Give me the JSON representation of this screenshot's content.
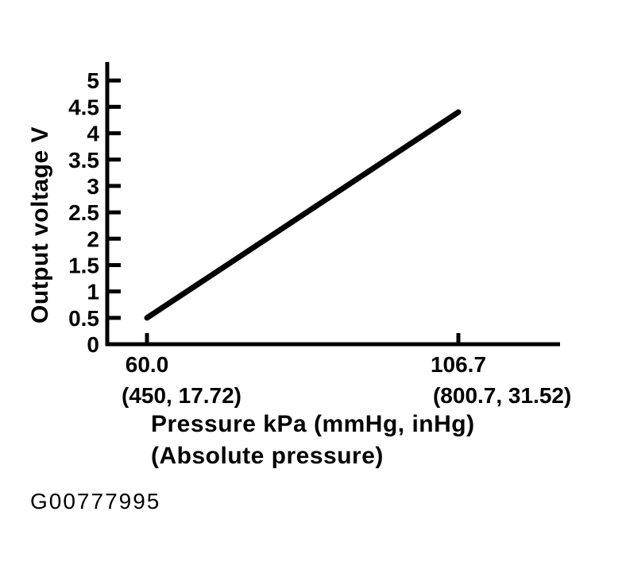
{
  "figure_id": "G00777995",
  "colors": {
    "ink": "#000000",
    "background": "#ffffff"
  },
  "chart_data": {
    "type": "line",
    "title": "",
    "ylabel": "Output voltage V",
    "xlabel_line1": "Pressure kPa (mmHg, inHg)",
    "xlabel_line2": "(Absolute pressure)",
    "x_units": "kPa",
    "x_alt_units": [
      "mmHg",
      "inHg"
    ],
    "y_units": "V",
    "grid": false,
    "legend": false,
    "xlim": [
      54.04,
      121.95
    ],
    "ylim": [
      0,
      5.35
    ],
    "yticks": {
      "values": [
        0,
        0.5,
        1,
        1.5,
        2,
        2.5,
        3,
        3.5,
        4,
        4.5,
        5
      ],
      "labels": [
        "0",
        "0.5",
        "1",
        "1.5",
        "2",
        "2.5",
        "3",
        "3.5",
        "4",
        "4.5",
        "5"
      ]
    },
    "xticks": [
      {
        "value": 60.0,
        "label": "60.0",
        "sublabel": "(450, 17.72)",
        "mmHg": 450,
        "inHg": 17.72
      },
      {
        "value": 106.7,
        "label": "106.7",
        "sublabel": "(800.7, 31.52)",
        "mmHg": 800.7,
        "inHg": 31.52
      }
    ],
    "series": [
      {
        "name": "sensor-output-line",
        "points": [
          {
            "x": 60.0,
            "y": 0.5
          },
          {
            "x": 106.7,
            "y": 4.4
          }
        ]
      }
    ]
  }
}
